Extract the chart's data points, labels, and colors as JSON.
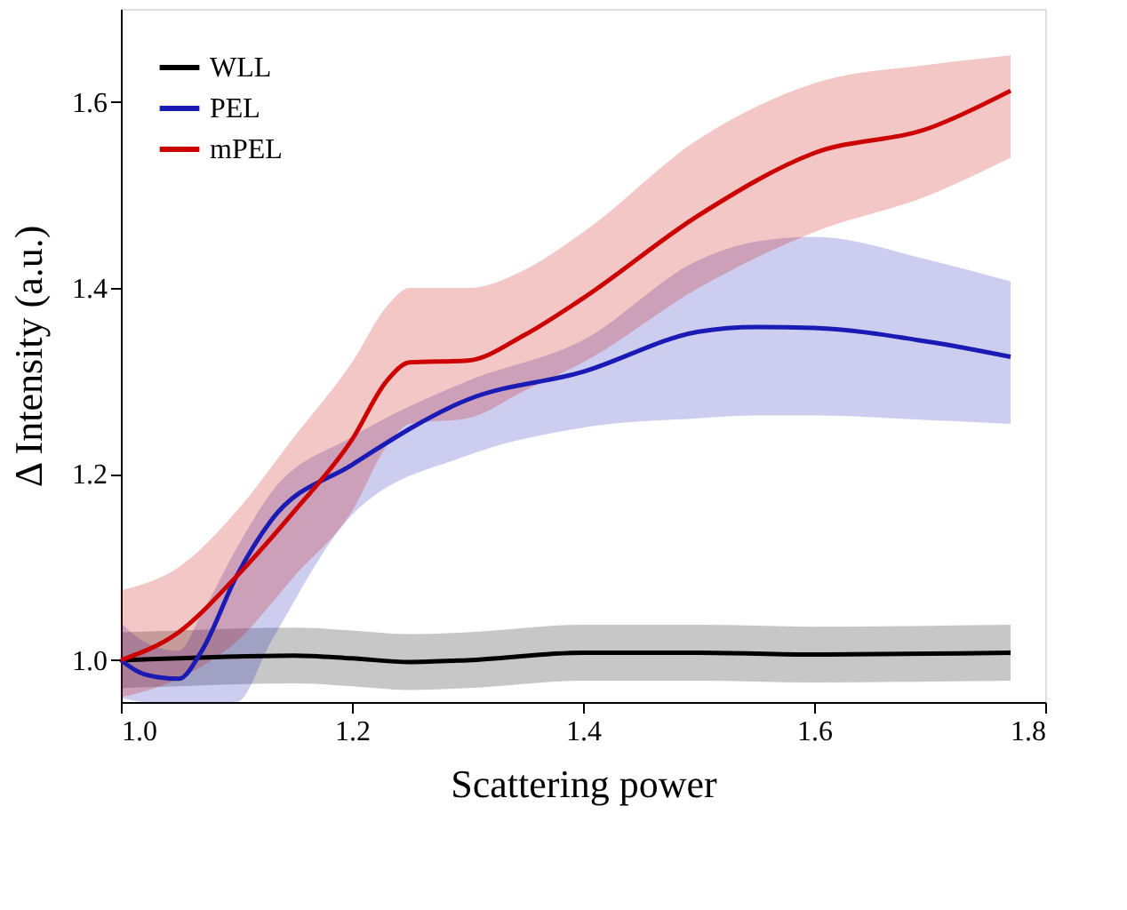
{
  "chart_data": {
    "type": "line",
    "xlabel": "Scattering power",
    "ylabel": "Δ Intensity (a.u.)",
    "xlim": [
      1.0,
      1.8
    ],
    "ylim": [
      0.955,
      1.7
    ],
    "xticks": [
      {
        "value": 1.0,
        "label": "1.0"
      },
      {
        "value": 1.2,
        "label": "1.2"
      },
      {
        "value": 1.4,
        "label": "1.4"
      },
      {
        "value": 1.6,
        "label": "1.6"
      },
      {
        "value": 1.8,
        "label": "1.8"
      }
    ],
    "yticks": [
      {
        "value": 1.0,
        "label": "1.0"
      },
      {
        "value": 1.2,
        "label": "1.2"
      },
      {
        "value": 1.4,
        "label": "1.4"
      },
      {
        "value": 1.6,
        "label": "1.6"
      }
    ],
    "grid": false,
    "legend": "top left",
    "marker": "none",
    "line_style": "solid",
    "series": [
      {
        "name": "WLL",
        "color": "#000000",
        "x": [
          1.0,
          1.05,
          1.1,
          1.15,
          1.2,
          1.25,
          1.3,
          1.4,
          1.5,
          1.6,
          1.7,
          1.77
        ],
        "values": [
          1.0,
          1.002,
          1.004,
          1.005,
          1.002,
          0.998,
          1.0,
          1.008,
          1.008,
          1.006,
          1.007,
          1.008
        ],
        "lower": [
          0.97,
          0.972,
          0.974,
          0.975,
          0.972,
          0.968,
          0.97,
          0.978,
          0.978,
          0.976,
          0.977,
          0.978
        ],
        "upper": [
          1.03,
          1.032,
          1.034,
          1.035,
          1.032,
          1.028,
          1.03,
          1.038,
          1.038,
          1.036,
          1.037,
          1.038
        ]
      },
      {
        "name": "PEL",
        "color": "#1a1ab4",
        "x": [
          1.0,
          1.02,
          1.05,
          1.07,
          1.1,
          1.13,
          1.2,
          1.3,
          1.4,
          1.5,
          1.55,
          1.6,
          1.7,
          1.77
        ],
        "values": [
          1.0,
          0.985,
          0.98,
          1.01,
          1.09,
          1.15,
          1.21,
          1.28,
          1.31,
          1.353,
          1.358,
          1.357,
          1.342,
          1.326
        ],
        "lower": [
          0.96,
          0.955,
          0.955,
          0.955,
          0.955,
          1.02,
          1.156,
          1.22,
          1.25,
          1.26,
          1.263,
          1.263,
          1.258,
          1.254
        ],
        "upper": [
          1.04,
          1.02,
          1.01,
          1.05,
          1.12,
          1.18,
          1.24,
          1.3,
          1.344,
          1.43,
          1.45,
          1.455,
          1.43,
          1.407
        ]
      },
      {
        "name": "mPEL",
        "color": "#cc0000",
        "x": [
          1.0,
          1.05,
          1.1,
          1.15,
          1.2,
          1.23,
          1.25,
          1.3,
          1.35,
          1.4,
          1.5,
          1.6,
          1.7,
          1.77
        ],
        "values": [
          1.0,
          1.03,
          1.09,
          1.16,
          1.237,
          1.3,
          1.32,
          1.322,
          1.35,
          1.389,
          1.478,
          1.545,
          1.572,
          1.612
        ],
        "lower": [
          0.96,
          0.98,
          1.02,
          1.09,
          1.16,
          1.23,
          1.254,
          1.26,
          1.29,
          1.32,
          1.4,
          1.46,
          1.5,
          1.54
        ],
        "upper": [
          1.075,
          1.1,
          1.16,
          1.24,
          1.32,
          1.38,
          1.4,
          1.4,
          1.42,
          1.46,
          1.56,
          1.62,
          1.64,
          1.65
        ]
      }
    ]
  }
}
